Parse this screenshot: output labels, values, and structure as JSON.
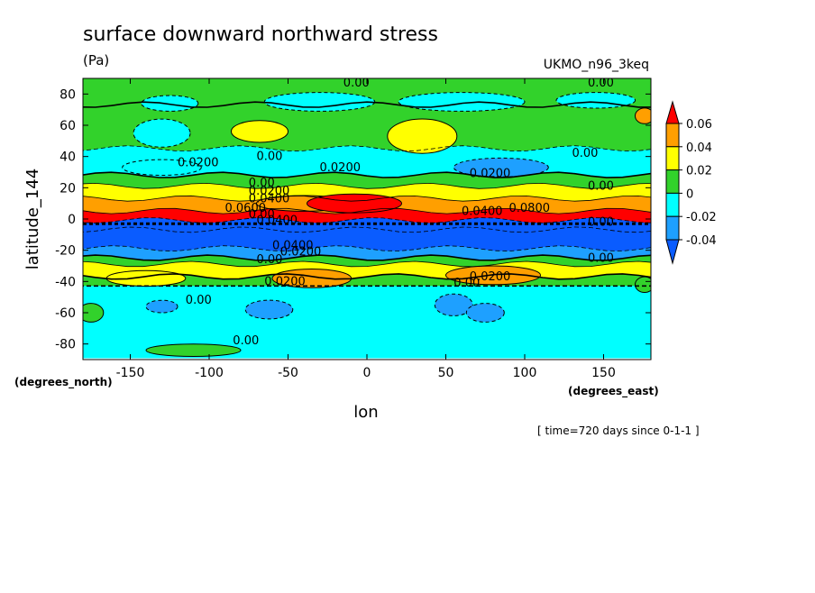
{
  "chart_data": {
    "type": "heatmap",
    "title": "surface downward northward stress",
    "units": "(Pa)",
    "model": "UKMO_n96_3keq",
    "xlabel": "lon",
    "ylabel": "latitude_144",
    "x_units": "(degrees_east)",
    "y_units": "(degrees_north)",
    "time_note": "[ time=720 days since 0-1-1 ]",
    "xlim": [
      -180,
      180
    ],
    "ylim": [
      -90,
      90
    ],
    "x_ticks": [
      "-150",
      "-100",
      "-50",
      "0",
      "50",
      "100",
      "150"
    ],
    "x_tick_values": [
      -150,
      -100,
      -50,
      0,
      50,
      100,
      150
    ],
    "y_ticks": [
      "80",
      "60",
      "40",
      "20",
      "0",
      "-20",
      "-40",
      "-60",
      "-80"
    ],
    "y_tick_values": [
      80,
      60,
      40,
      20,
      0,
      -20,
      -40,
      -60,
      -80
    ],
    "colorbar": {
      "labels": [
        "0.06",
        "0.04",
        "0.02",
        "0",
        "-0.02",
        "-0.04"
      ],
      "levels": [
        -0.06,
        -0.04,
        -0.02,
        0,
        0.02,
        0.04,
        0.06,
        0.08
      ],
      "colors": [
        "#0a5cff",
        "#1ea0ff",
        "#00ffff",
        "#32d22b",
        "#ffff00",
        "#ff9f00",
        "#ff0000"
      ]
    },
    "bands": [
      {
        "lat": [
          72,
          90
        ],
        "value": 0.01
      },
      {
        "lat": [
          44,
          72
        ],
        "value": 0.01
      },
      {
        "lat": [
          27,
          44
        ],
        "value": -0.02
      },
      {
        "lat": [
          20,
          27
        ],
        "value": 0.01
      },
      {
        "lat": [
          12,
          20
        ],
        "value": 0.03
      },
      {
        "lat": [
          4,
          12
        ],
        "value": 0.05
      },
      {
        "lat": [
          -2,
          4
        ],
        "value": 0.07
      },
      {
        "lat": [
          -8,
          -2
        ],
        "value": -0.05
      },
      {
        "lat": [
          -20,
          -8
        ],
        "value": -0.045
      },
      {
        "lat": [
          -26,
          -20
        ],
        "value": -0.025
      },
      {
        "lat": [
          -30,
          -26
        ],
        "value": 0.01
      },
      {
        "lat": [
          -38,
          -30
        ],
        "value": 0.03
      },
      {
        "lat": [
          -44,
          -38
        ],
        "value": 0.01
      },
      {
        "lat": [
          -88,
          -44
        ],
        "value": -0.01
      }
    ],
    "blobs": [
      {
        "lon": -125,
        "lat": 74,
        "rx": 18,
        "ry": 5,
        "value": -0.01
      },
      {
        "lon": -30,
        "lat": 75,
        "rx": 35,
        "ry": 6,
        "value": -0.01
      },
      {
        "lon": 60,
        "lat": 75,
        "rx": 40,
        "ry": 6,
        "value": -0.01
      },
      {
        "lon": 145,
        "lat": 76,
        "rx": 25,
        "ry": 5,
        "value": -0.01
      },
      {
        "lon": -130,
        "lat": 55,
        "rx": 18,
        "ry": 9,
        "value": -0.01
      },
      {
        "lon": -68,
        "lat": 56,
        "rx": 18,
        "ry": 7,
        "value": 0.03
      },
      {
        "lon": 35,
        "lat": 53,
        "rx": 22,
        "ry": 11,
        "value": 0.03
      },
      {
        "lon": 176,
        "lat": 66,
        "rx": 6,
        "ry": 5,
        "value": 0.05
      },
      {
        "lon": 85,
        "lat": 33,
        "rx": 30,
        "ry": 6,
        "value": -0.03
      },
      {
        "lon": -130,
        "lat": 33,
        "rx": 25,
        "ry": 5,
        "value": -0.02
      },
      {
        "lon": -40,
        "lat": 10,
        "rx": 30,
        "ry": 5,
        "value": 0.05
      },
      {
        "lon": -8,
        "lat": 10,
        "rx": 30,
        "ry": 6,
        "value": 0.07
      },
      {
        "lon": -35,
        "lat": -38,
        "rx": 25,
        "ry": 6,
        "value": 0.05
      },
      {
        "lon": 80,
        "lat": -36,
        "rx": 30,
        "ry": 6,
        "value": 0.05
      },
      {
        "lon": -140,
        "lat": -38,
        "rx": 25,
        "ry": 5,
        "value": 0.03
      },
      {
        "lon": -130,
        "lat": -56,
        "rx": 10,
        "ry": 4,
        "value": -0.03
      },
      {
        "lon": -62,
        "lat": -58,
        "rx": 15,
        "ry": 6,
        "value": -0.03
      },
      {
        "lon": 55,
        "lat": -55,
        "rx": 12,
        "ry": 7,
        "value": -0.03
      },
      {
        "lon": 75,
        "lat": -60,
        "rx": 12,
        "ry": 6,
        "value": -0.03
      },
      {
        "lon": -110,
        "lat": -84,
        "rx": 30,
        "ry": 4,
        "value": 0.01
      },
      {
        "lon": -175,
        "lat": -60,
        "rx": 8,
        "ry": 6,
        "value": 0.01
      },
      {
        "lon": 176,
        "lat": -42,
        "rx": 6,
        "ry": 5,
        "value": 0.01
      }
    ],
    "contour_labels": [
      {
        "lon": -15,
        "lat": 87,
        "text": "0.00"
      },
      {
        "lon": 140,
        "lat": 87,
        "text": "0.00"
      },
      {
        "lon": -120,
        "lat": 36,
        "text": "0.0200"
      },
      {
        "lon": -70,
        "lat": 40,
        "text": "0.00"
      },
      {
        "lon": -30,
        "lat": 33,
        "text": "0.0200"
      },
      {
        "lon": 65,
        "lat": 29,
        "text": "0.0200"
      },
      {
        "lon": 130,
        "lat": 42,
        "text": "0.00"
      },
      {
        "lon": 140,
        "lat": 21,
        "text": "0.00"
      },
      {
        "lon": -75,
        "lat": 23,
        "text": "0.00"
      },
      {
        "lon": -75,
        "lat": 18,
        "text": "0.0200"
      },
      {
        "lon": -75,
        "lat": 13,
        "text": "0.0400"
      },
      {
        "lon": -90,
        "lat": 7,
        "text": "0.0600"
      },
      {
        "lon": 60,
        "lat": 5,
        "text": "0.0400"
      },
      {
        "lon": 90,
        "lat": 7,
        "text": "0.0800"
      },
      {
        "lon": -75,
        "lat": 3,
        "text": "0.00"
      },
      {
        "lon": -70,
        "lat": -1,
        "text": "0.0400"
      },
      {
        "lon": 140,
        "lat": -2,
        "text": "0.00"
      },
      {
        "lon": -60,
        "lat": -17,
        "text": "0.0400"
      },
      {
        "lon": -55,
        "lat": -21,
        "text": "0.0200"
      },
      {
        "lon": -70,
        "lat": -26,
        "text": "0.00"
      },
      {
        "lon": 140,
        "lat": -25,
        "text": "0.00"
      },
      {
        "lon": -65,
        "lat": -40,
        "text": "0.0200"
      },
      {
        "lon": 65,
        "lat": -37,
        "text": "0.0200"
      },
      {
        "lon": 55,
        "lat": -41,
        "text": "0.00"
      },
      {
        "lon": -115,
        "lat": -52,
        "text": "0.00"
      },
      {
        "lon": -85,
        "lat": -78,
        "text": "0.00"
      }
    ]
  }
}
